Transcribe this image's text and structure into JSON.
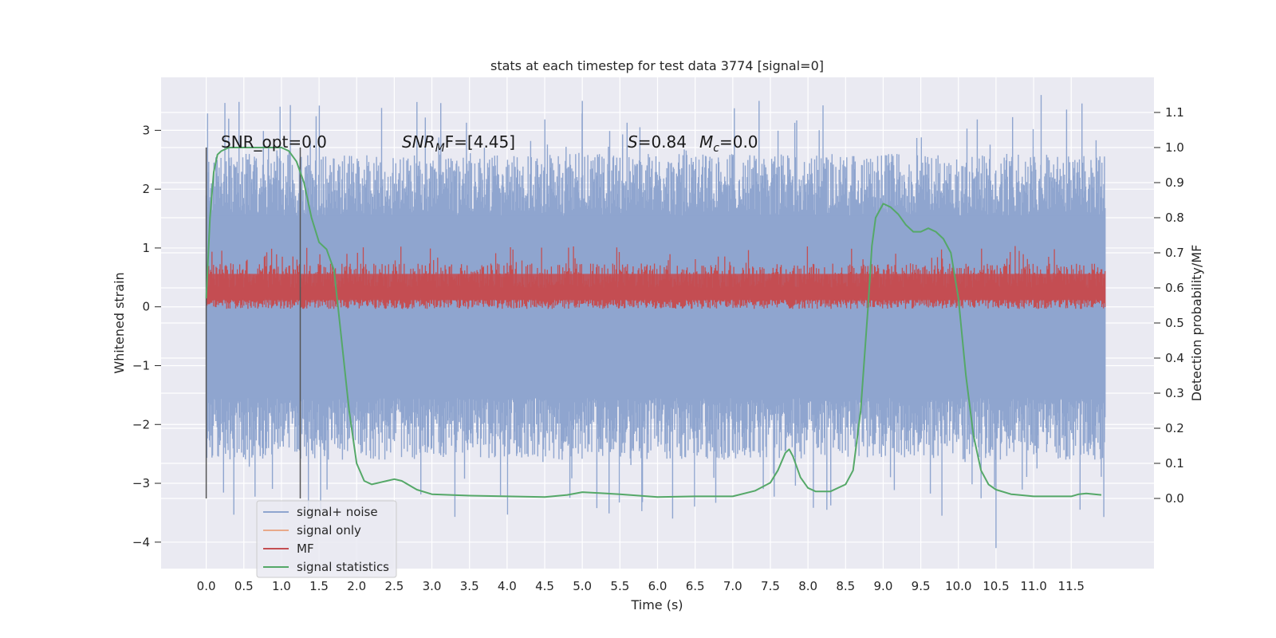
{
  "chart_data": {
    "type": "line",
    "title": "stats at each timestep for test data 3774 [signal=0]",
    "xlabel": "Time (s)",
    "ylabel": "Whitened strain",
    "y2label": "Detection probability/MF",
    "xlim": [
      -0.6,
      12.6
    ],
    "ylim": [
      -4.45,
      3.9
    ],
    "y2lim": [
      -0.2,
      1.2
    ],
    "x_ticks": [
      "0.0",
      "0.5",
      "1.0",
      "1.5",
      "2.0",
      "2.5",
      "3.0",
      "3.5",
      "4.0",
      "4.5",
      "5.0",
      "5.5",
      "6.0",
      "6.5",
      "7.0",
      "7.5",
      "8.0",
      "8.5",
      "9.0",
      "9.5",
      "10.0",
      "10.5",
      "11.0",
      "11.5"
    ],
    "y_ticks": [
      "3",
      "2",
      "1",
      "0",
      "−1",
      "−2",
      "−3",
      "−4"
    ],
    "y2_ticks": [
      "1.1",
      "1.0",
      "0.9",
      "0.8",
      "0.7",
      "0.6",
      "0.5",
      "0.4",
      "0.3",
      "0.2",
      "0.1",
      "0.0"
    ],
    "grid": true,
    "legend_placement": "lower-left",
    "annotations": {
      "snr_opt": "SNR_opt=0.0",
      "snr_mf_base": "SNR",
      "snr_mf_sub": "M",
      "snr_mf_rest": "F=[4.45]",
      "s_label": "S",
      "s_value": "=0.84",
      "mc_label": "M",
      "mc_sub": "c",
      "mc_value": "=0.0"
    },
    "vlines": [
      0.0,
      1.25
    ],
    "series": [
      {
        "name": "signal+ noise",
        "color": "#8fa5cf",
        "x_range": [
          0.0,
          11.95
        ],
        "band_core": [
          -1.55,
          1.55
        ],
        "band_typical": [
          -2.6,
          2.6
        ],
        "peaks_max": [
          3.5,
          3.6
        ],
        "peaks_min": [
          -3.6,
          -4.1
        ]
      },
      {
        "name": "signal only",
        "color": "#e8a98a",
        "values": []
      },
      {
        "name": "MF",
        "color": "#c44e52",
        "axis": "right",
        "x_range": [
          0.0,
          11.95
        ],
        "band": [
          0.54,
          0.76
        ],
        "peak": 0.72
      },
      {
        "name": "signal statistics",
        "color": "#55a868",
        "axis": "right",
        "x": [
          0.0,
          0.05,
          0.1,
          0.15,
          0.2,
          0.3,
          0.5,
          0.8,
          1.0,
          1.1,
          1.2,
          1.3,
          1.4,
          1.5,
          1.6,
          1.7,
          1.8,
          1.9,
          2.0,
          2.1,
          2.2,
          2.3,
          2.4,
          2.5,
          2.6,
          2.8,
          3.0,
          3.5,
          4.0,
          4.5,
          4.8,
          5.0,
          5.5,
          6.0,
          6.5,
          7.0,
          7.3,
          7.5,
          7.6,
          7.7,
          7.75,
          7.8,
          7.9,
          8.0,
          8.1,
          8.3,
          8.5,
          8.6,
          8.7,
          8.8,
          8.85,
          8.9,
          9.0,
          9.1,
          9.2,
          9.3,
          9.4,
          9.5,
          9.6,
          9.7,
          9.8,
          9.9,
          10.0,
          10.1,
          10.2,
          10.3,
          10.4,
          10.5,
          10.7,
          11.0,
          11.5,
          11.6,
          11.7,
          11.9
        ],
        "values": [
          0.57,
          0.8,
          0.93,
          0.98,
          0.99,
          1.0,
          1.0,
          1.0,
          1.0,
          0.99,
          0.96,
          0.9,
          0.8,
          0.73,
          0.71,
          0.65,
          0.45,
          0.25,
          0.1,
          0.05,
          0.04,
          0.045,
          0.05,
          0.055,
          0.05,
          0.025,
          0.012,
          0.008,
          0.006,
          0.004,
          0.01,
          0.018,
          0.012,
          0.004,
          0.006,
          0.006,
          0.022,
          0.045,
          0.08,
          0.13,
          0.14,
          0.12,
          0.06,
          0.03,
          0.02,
          0.02,
          0.04,
          0.08,
          0.25,
          0.55,
          0.72,
          0.8,
          0.84,
          0.83,
          0.81,
          0.78,
          0.76,
          0.76,
          0.77,
          0.76,
          0.74,
          0.7,
          0.57,
          0.35,
          0.18,
          0.08,
          0.04,
          0.025,
          0.012,
          0.006,
          0.006,
          0.012,
          0.014,
          0.01
        ]
      }
    ]
  }
}
